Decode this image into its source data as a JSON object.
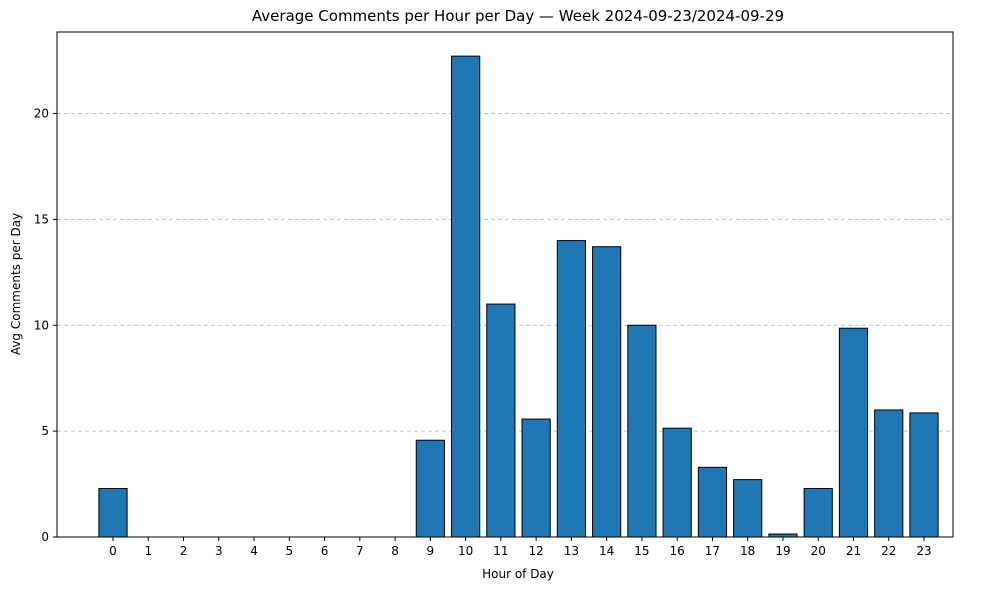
{
  "chart_data": {
    "type": "bar",
    "title": "Average Comments per Hour per Day — Week 2024-09-23/2024-09-29",
    "xlabel": "Hour of Day",
    "ylabel": "Avg Comments per Day",
    "categories": [
      "0",
      "1",
      "2",
      "3",
      "4",
      "5",
      "6",
      "7",
      "8",
      "9",
      "10",
      "11",
      "12",
      "13",
      "14",
      "15",
      "16",
      "17",
      "18",
      "19",
      "20",
      "21",
      "22",
      "23"
    ],
    "values": [
      2.29,
      0,
      0,
      0,
      0,
      0,
      0,
      0,
      0,
      4.57,
      22.71,
      11.0,
      5.57,
      14.0,
      13.71,
      10.0,
      5.14,
      3.29,
      2.71,
      0.14,
      2.29,
      9.86,
      6.0,
      5.86
    ],
    "ylim": [
      0,
      23.85
    ],
    "yticks": [
      0,
      5,
      10,
      15,
      20
    ],
    "grid": "y-dashed",
    "bar_color": "#1f77b4",
    "edge_color": "#000000"
  }
}
